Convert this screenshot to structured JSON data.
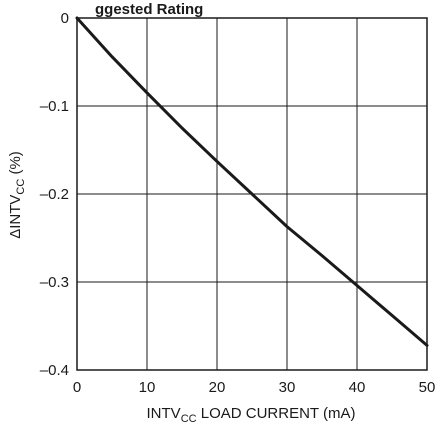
{
  "chart_data": {
    "type": "line",
    "title_fragment": "ggested Rating",
    "xlabel": {
      "main": "INTV",
      "sub": "CC",
      "rest": " LOAD CURRENT (mA)"
    },
    "ylabel": {
      "prefix": "ΔINTV",
      "sub": "CC",
      "rest": " (%)"
    },
    "x_ticks": [
      "0",
      "10",
      "20",
      "30",
      "40",
      "50"
    ],
    "y_ticks": [
      "0",
      "–0.1",
      "–0.2",
      "–0.3",
      "–0.4"
    ],
    "xlim": [
      0,
      50
    ],
    "ylim": [
      -0.4,
      0
    ],
    "grid": true,
    "series": [
      {
        "x": [
          0,
          5,
          10,
          15,
          20,
          25,
          30,
          35,
          40,
          45,
          50
        ],
        "y": [
          0,
          -0.044,
          -0.085,
          -0.125,
          -0.163,
          -0.2,
          -0.237,
          -0.27,
          -0.304,
          -0.338,
          -0.372
        ]
      }
    ],
    "line_color": "#1a1a1a"
  }
}
